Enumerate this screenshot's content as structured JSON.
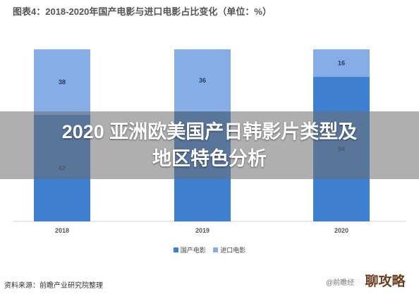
{
  "title": "图表4：2018-2020年国产电影与进口电影占比变化（单位：%）",
  "overlay_text": [
    "2020 亚洲欧美国产日韩影片类型及",
    "地区特色分析"
  ],
  "source": "资料来源：前瞻产业研究院整理",
  "watermark": "@前瞻经济学人",
  "corner_logo": "聊攻略",
  "colors": {
    "domestic": "#3F7FD0",
    "imported": "#86AEE6"
  },
  "chart_data": {
    "type": "bar",
    "stacked": true,
    "title": "图表4：2018-2020年国产电影与进口电影占比变化（单位：%）",
    "categories": [
      "2018",
      "2019",
      "2020"
    ],
    "series": [
      {
        "name": "国产电影",
        "values": [
          62,
          64,
          84
        ]
      },
      {
        "name": "进口电影",
        "values": [
          38,
          36,
          16
        ]
      }
    ],
    "ylim": [
      0,
      100
    ],
    "legend": "bottom",
    "grid": false
  }
}
